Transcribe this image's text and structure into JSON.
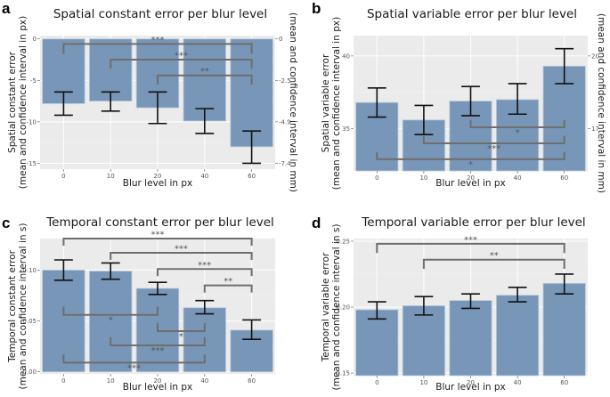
{
  "chart_data": [
    {
      "panel": "a",
      "type": "bar",
      "title": "Spatial constant error per blur level",
      "xlabel": "Blur level in px",
      "ylabel": [
        "Spatial constant error",
        "(mean and confidence interval in px)"
      ],
      "ylabel_right": "(mean and confidence interval in mm)",
      "categories": [
        "0",
        "10",
        "20",
        "40",
        "60"
      ],
      "values": [
        -7.8,
        -7.5,
        -8.3,
        -9.9,
        -13.0
      ],
      "ci_low": [
        -9.2,
        -8.7,
        -10.2,
        -11.4,
        -15.0
      ],
      "ci_high": [
        -6.4,
        -6.4,
        -6.4,
        -8.4,
        -11.1
      ],
      "ylim": [
        -15.7,
        0.4
      ],
      "bar_base": 0,
      "yticks": [
        0,
        -5,
        -10,
        -15
      ],
      "ytick_labels": [
        "0",
        "-5",
        "-10",
        "-15"
      ],
      "yticks_right": [
        0,
        -5,
        -10,
        -15
      ],
      "ytick_labels_right": [
        "0",
        "-2.5",
        "-4.9",
        "-7.4"
      ],
      "grid": true,
      "significance": [
        {
          "from": 0,
          "to": 4,
          "label": "***",
          "y": -0.6,
          "drop": -1.8
        },
        {
          "from": 1,
          "to": 4,
          "label": "***",
          "y": -2.5,
          "drop": -3.6
        },
        {
          "from": 2,
          "to": 4,
          "label": "**",
          "y": -4.4,
          "drop": -5.5
        }
      ]
    },
    {
      "panel": "b",
      "type": "bar",
      "title": "Spatial variable error per blur level",
      "xlabel": "Blur level in px",
      "ylabel": [
        "Spatial variable error",
        "(mean and confidence interval in px)"
      ],
      "ylabel_right": "(mean and confidence interval in mm)",
      "categories": [
        "0",
        "10",
        "20",
        "40",
        "60"
      ],
      "values": [
        36.8,
        35.6,
        36.9,
        37.0,
        39.3
      ],
      "ci_low": [
        35.8,
        34.6,
        35.9,
        36.0,
        38.1
      ],
      "ci_high": [
        37.8,
        36.6,
        37.9,
        38.1,
        40.5
      ],
      "ylim": [
        32.1,
        41.4
      ],
      "bar_base": 32.1,
      "yticks": [
        35,
        40
      ],
      "ytick_labels": [
        "35",
        "40"
      ],
      "yticks_right": [
        35,
        40
      ],
      "ytick_labels_right": [
        "17",
        "20"
      ],
      "grid": true,
      "significance": [
        {
          "from": 2,
          "to": 4,
          "label": "*",
          "y": 35.1,
          "drop": 35.6
        },
        {
          "from": 1,
          "to": 4,
          "label": "***",
          "y": 34.0,
          "drop": 34.5
        },
        {
          "from": 0,
          "to": 4,
          "label": "*",
          "y": 32.9,
          "drop": 33.4
        }
      ]
    },
    {
      "panel": "c",
      "type": "bar",
      "title": "Temporal constant error per blur level",
      "xlabel": "Blur level in px",
      "ylabel": [
        "Temporal constant error",
        "(mean and confidence interval in s)"
      ],
      "ylabel_right": "",
      "categories": [
        "0",
        "10",
        "20",
        "40",
        "60"
      ],
      "values": [
        0.1,
        0.099,
        0.082,
        0.063,
        0.041
      ],
      "ci_low": [
        0.09,
        0.091,
        0.076,
        0.057,
        0.032
      ],
      "ci_high": [
        0.11,
        0.107,
        0.088,
        0.07,
        0.051
      ],
      "ylim": [
        -0.002,
        0.131
      ],
      "bar_base": 0,
      "yticks": [
        0.0,
        0.05,
        0.1
      ],
      "ytick_labels": [
        "0.00",
        "0.05",
        "0.10"
      ],
      "yticks_right": [],
      "ytick_labels_right": [],
      "grid": true,
      "significance": [
        {
          "from": 0,
          "to": 4,
          "label": "***",
          "y": 0.131,
          "drop": 0.124
        },
        {
          "from": 1,
          "to": 4,
          "label": "***",
          "y": 0.117,
          "drop": 0.11
        },
        {
          "from": 2,
          "to": 4,
          "label": "***",
          "y": 0.101,
          "drop": 0.094
        },
        {
          "from": 3,
          "to": 4,
          "label": "**",
          "y": 0.085,
          "drop": 0.078
        },
        {
          "from": 0,
          "to": 2,
          "label": "*",
          "y": 0.056,
          "drop": 0.064
        },
        {
          "from": 2,
          "to": 3,
          "label": "*",
          "y": 0.04,
          "drop": 0.048
        },
        {
          "from": 1,
          "to": 3,
          "label": "***",
          "y": 0.026,
          "drop": 0.034
        },
        {
          "from": 0,
          "to": 3,
          "label": "***",
          "y": 0.009,
          "drop": 0.017
        }
      ]
    },
    {
      "panel": "d",
      "type": "bar",
      "title": "Temporal variable error per blur level",
      "xlabel": "Blur level in px",
      "ylabel": [
        "Temporal variable error",
        "(mean and confidence interval in s)"
      ],
      "ylabel_right": "",
      "categories": [
        "0",
        "10",
        "20",
        "40",
        "60"
      ],
      "values": [
        0.198,
        0.201,
        0.205,
        0.209,
        0.218
      ],
      "ci_low": [
        0.191,
        0.194,
        0.199,
        0.204,
        0.21
      ],
      "ci_high": [
        0.204,
        0.208,
        0.21,
        0.215,
        0.225
      ],
      "ylim": [
        0.148,
        0.252
      ],
      "bar_base": 0.148,
      "yticks": [
        0.15,
        0.2,
        0.25
      ],
      "ytick_labels": [
        "0.15",
        "0.20",
        "0.25"
      ],
      "yticks_right": [],
      "ytick_labels_right": [],
      "grid": true,
      "significance": [
        {
          "from": 0,
          "to": 4,
          "label": "***",
          "y": 0.248,
          "drop": 0.241
        },
        {
          "from": 1,
          "to": 4,
          "label": "**",
          "y": 0.236,
          "drop": 0.229
        }
      ]
    }
  ],
  "colors": {
    "bar_fill": "#7896b8",
    "bar_edge": "#b9c8d9",
    "panel_bg": "#ebebeb",
    "grid_major": "#ffffff",
    "grid_minor": "#f4f4f4",
    "error_bar": "#111111",
    "bracket": "#6e6e6e"
  }
}
